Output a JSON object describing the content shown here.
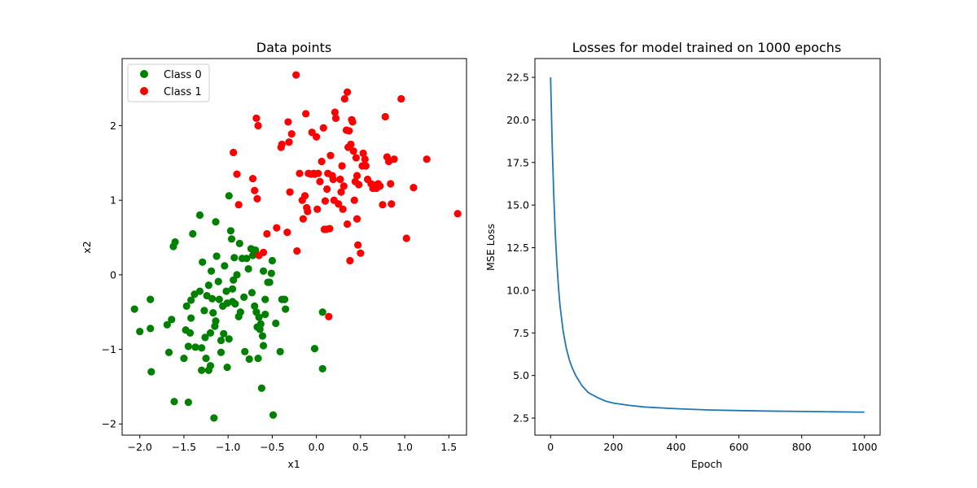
{
  "chart_data": [
    {
      "type": "scatter",
      "title": "Data points",
      "xlabel": "x1",
      "ylabel": "x2",
      "xlim": [
        -2.2,
        1.7
      ],
      "ylim": [
        -2.15,
        2.9
      ],
      "xticks": [
        -2.0,
        -1.5,
        -1.0,
        -0.5,
        0.0,
        0.5,
        1.0,
        1.5
      ],
      "xtick_labels": [
        "−2.0",
        "−1.5",
        "−1.0",
        "−0.5",
        "0.0",
        "0.5",
        "1.0",
        "1.5"
      ],
      "yticks": [
        -2,
        -1,
        0,
        1,
        2
      ],
      "ytick_labels": [
        "−2",
        "−1",
        "0",
        "1",
        "2"
      ],
      "legend": "top-left",
      "grid": false,
      "series": [
        {
          "name": "Class 0",
          "color": "#008000",
          "points": [
            [
              -2.06,
              -0.46
            ],
            [
              -2.0,
              -0.76
            ],
            [
              -1.88,
              -0.72
            ],
            [
              -1.88,
              -0.33
            ],
            [
              -1.87,
              -1.3
            ],
            [
              -1.69,
              -0.67
            ],
            [
              -1.67,
              -1.04
            ],
            [
              -1.64,
              -0.6
            ],
            [
              -1.62,
              0.38
            ],
            [
              -1.6,
              0.44
            ],
            [
              -1.61,
              -1.7
            ],
            [
              -1.5,
              -1.12
            ],
            [
              -1.48,
              -0.74
            ],
            [
              -1.47,
              -0.42
            ],
            [
              -1.45,
              -0.96
            ],
            [
              -1.45,
              -1.71
            ],
            [
              -1.43,
              -0.78
            ],
            [
              -1.42,
              -0.58
            ],
            [
              -1.42,
              -0.34
            ],
            [
              -1.4,
              0.55
            ],
            [
              -1.38,
              -0.26
            ],
            [
              -1.37,
              -0.97
            ],
            [
              -1.32,
              0.8
            ],
            [
              -1.32,
              -0.22
            ],
            [
              -1.3,
              -1.28
            ],
            [
              -1.3,
              -0.98
            ],
            [
              -1.29,
              0.17
            ],
            [
              -1.27,
              -0.48
            ],
            [
              -1.26,
              -0.84
            ],
            [
              -1.25,
              -1.12
            ],
            [
              -1.24,
              -0.28
            ],
            [
              -1.22,
              -1.28
            ],
            [
              -1.22,
              -0.14
            ],
            [
              -1.2,
              -1.22
            ],
            [
              -1.2,
              -0.78
            ],
            [
              -1.19,
              0.05
            ],
            [
              -1.18,
              -0.32
            ],
            [
              -1.17,
              -0.51
            ],
            [
              -1.16,
              -1.92
            ],
            [
              -1.15,
              -0.69
            ],
            [
              -1.14,
              0.71
            ],
            [
              -1.14,
              -0.62
            ],
            [
              -1.13,
              0.25
            ],
            [
              -1.11,
              -0.09
            ],
            [
              -1.1,
              -0.33
            ],
            [
              -1.08,
              -0.88
            ],
            [
              -1.08,
              -1.04
            ],
            [
              -1.06,
              -0.42
            ],
            [
              -1.05,
              -0.79
            ],
            [
              -1.04,
              0.12
            ],
            [
              -1.02,
              -0.22
            ],
            [
              -1.01,
              -0.38
            ],
            [
              -1.01,
              -1.24
            ],
            [
              -0.99,
              1.06
            ],
            [
              -0.99,
              -0.86
            ],
            [
              -0.97,
              0.59
            ],
            [
              -0.96,
              0.48
            ],
            [
              -0.95,
              -0.36
            ],
            [
              -0.95,
              -0.19
            ],
            [
              -0.94,
              -0.07
            ],
            [
              -0.93,
              0.23
            ],
            [
              -0.92,
              -0.39
            ],
            [
              -0.9,
              0.0
            ],
            [
              -0.88,
              -0.56
            ],
            [
              -0.87,
              0.42
            ],
            [
              -0.86,
              -0.5
            ],
            [
              -0.84,
              0.22
            ],
            [
              -0.82,
              -0.3
            ],
            [
              -0.81,
              -1.03
            ],
            [
              -0.79,
              0.22
            ],
            [
              -0.77,
              0.08
            ],
            [
              -0.76,
              -1.13
            ],
            [
              -0.74,
              0.35
            ],
            [
              -0.73,
              -0.24
            ],
            [
              -0.72,
              0.26
            ],
            [
              -0.7,
              -0.42
            ],
            [
              -0.69,
              0.33
            ],
            [
              -0.68,
              -0.5
            ],
            [
              -0.67,
              -0.7
            ],
            [
              -0.66,
              -1.12
            ],
            [
              -0.65,
              -0.57
            ],
            [
              -0.64,
              -0.73
            ],
            [
              -0.63,
              -0.66
            ],
            [
              -0.62,
              -1.52
            ],
            [
              -0.61,
              -0.82
            ],
            [
              -0.6,
              0.05
            ],
            [
              -0.6,
              -0.95
            ],
            [
              -0.58,
              -0.53
            ],
            [
              -0.58,
              -0.33
            ],
            [
              -0.55,
              -0.1
            ],
            [
              -0.53,
              -0.1
            ],
            [
              -0.51,
              0.02
            ],
            [
              -0.5,
              0.19
            ],
            [
              -0.49,
              -1.88
            ],
            [
              -0.46,
              -0.65
            ],
            [
              -0.41,
              -1.03
            ],
            [
              -0.39,
              -0.33
            ],
            [
              -0.36,
              -0.33
            ],
            [
              -0.35,
              -0.46
            ],
            [
              -0.02,
              -0.99
            ],
            [
              0.07,
              -0.5
            ],
            [
              0.07,
              -1.26
            ]
          ]
        },
        {
          "name": "Class 1",
          "color": "#ff0000",
          "points": [
            [
              -0.94,
              1.64
            ],
            [
              -0.9,
              1.35
            ],
            [
              -0.88,
              0.94
            ],
            [
              -0.72,
              1.29
            ],
            [
              -0.7,
              1.13
            ],
            [
              -0.68,
              2.1
            ],
            [
              -0.67,
              1.02
            ],
            [
              -0.66,
              2.0
            ],
            [
              -0.65,
              0.26
            ],
            [
              -0.6,
              0.3
            ],
            [
              -0.56,
              0.55
            ],
            [
              -0.45,
              0.63
            ],
            [
              -0.4,
              1.71
            ],
            [
              -0.39,
              1.75
            ],
            [
              -0.33,
              0.57
            ],
            [
              -0.32,
              2.05
            ],
            [
              -0.31,
              1.78
            ],
            [
              -0.3,
              1.11
            ],
            [
              -0.28,
              1.89
            ],
            [
              -0.23,
              2.68
            ],
            [
              -0.22,
              0.32
            ],
            [
              -0.19,
              1.36
            ],
            [
              -0.16,
              1.0
            ],
            [
              -0.15,
              0.75
            ],
            [
              -0.13,
              1.06
            ],
            [
              -0.12,
              2.16
            ],
            [
              -0.11,
              0.9
            ],
            [
              -0.1,
              0.85
            ],
            [
              -0.09,
              1.36
            ],
            [
              -0.06,
              1.35
            ],
            [
              -0.05,
              1.91
            ],
            [
              -0.03,
              1.36
            ],
            [
              -0.02,
              1.35
            ],
            [
              0.0,
              1.85
            ],
            [
              0.01,
              0.88
            ],
            [
              0.02,
              1.36
            ],
            [
              0.04,
              1.25
            ],
            [
              0.06,
              1.52
            ],
            [
              0.08,
              1.97
            ],
            [
              0.09,
              0.61
            ],
            [
              0.1,
              0.99
            ],
            [
              0.11,
              0.61
            ],
            [
              0.12,
              1.15
            ],
            [
              0.13,
              1.36
            ],
            [
              0.14,
              -0.56
            ],
            [
              0.15,
              0.62
            ],
            [
              0.16,
              1.6
            ],
            [
              0.18,
              1.33
            ],
            [
              0.19,
              1.28
            ],
            [
              0.2,
              1.0
            ],
            [
              0.21,
              2.18
            ],
            [
              0.22,
              2.1
            ],
            [
              0.25,
              0.95
            ],
            [
              0.27,
              1.28
            ],
            [
              0.28,
              1.11
            ],
            [
              0.29,
              1.46
            ],
            [
              0.3,
              0.88
            ],
            [
              0.31,
              1.19
            ],
            [
              0.32,
              2.36
            ],
            [
              0.34,
              1.94
            ],
            [
              0.35,
              2.45
            ],
            [
              0.35,
              0.68
            ],
            [
              0.36,
              1.71
            ],
            [
              0.37,
              1.93
            ],
            [
              0.38,
              0.19
            ],
            [
              0.39,
              1.75
            ],
            [
              0.4,
              2.08
            ],
            [
              0.41,
              2.05
            ],
            [
              0.42,
              1.66
            ],
            [
              0.43,
              1.0
            ],
            [
              0.44,
              1.25
            ],
            [
              0.45,
              1.57
            ],
            [
              0.46,
              1.33
            ],
            [
              0.46,
              0.75
            ],
            [
              0.47,
              0.4
            ],
            [
              0.48,
              1.21
            ],
            [
              0.5,
              0.29
            ],
            [
              0.52,
              1.46
            ],
            [
              0.53,
              1.63
            ],
            [
              0.55,
              1.55
            ],
            [
              0.56,
              1.46
            ],
            [
              0.58,
              1.28
            ],
            [
              0.62,
              1.22
            ],
            [
              0.64,
              1.16
            ],
            [
              0.66,
              1.2
            ],
            [
              0.68,
              1.16
            ],
            [
              0.7,
              1.22
            ],
            [
              0.72,
              1.19
            ],
            [
              0.75,
              0.94
            ],
            [
              0.78,
              2.12
            ],
            [
              0.8,
              1.58
            ],
            [
              0.82,
              1.52
            ],
            [
              0.84,
              1.22
            ],
            [
              0.85,
              0.95
            ],
            [
              0.88,
              1.55
            ],
            [
              0.96,
              2.36
            ],
            [
              1.02,
              0.49
            ],
            [
              1.1,
              1.17
            ],
            [
              1.25,
              1.55
            ],
            [
              1.6,
              0.82
            ]
          ]
        }
      ]
    },
    {
      "type": "line",
      "title": "Losses for model trained on 1000 epochs",
      "xlabel": "Epoch",
      "ylabel": "MSE Loss",
      "xlim": [
        -50,
        1050
      ],
      "ylim": [
        1.5,
        23.6
      ],
      "xticks": [
        0,
        200,
        400,
        600,
        800,
        1000
      ],
      "xtick_labels": [
        "0",
        "200",
        "400",
        "600",
        "800",
        "1000"
      ],
      "yticks": [
        2.5,
        5.0,
        7.5,
        10.0,
        12.5,
        15.0,
        17.5,
        20.0,
        22.5
      ],
      "ytick_labels": [
        "2.5",
        "5.0",
        "7.5",
        "10.0",
        "12.5",
        "15.0",
        "17.5",
        "20.0",
        "22.5"
      ],
      "grid": false,
      "series": [
        {
          "name": "",
          "color": "#1f77b4",
          "x": [
            0,
            5,
            10,
            15,
            20,
            25,
            30,
            40,
            50,
            60,
            70,
            80,
            100,
            120,
            150,
            175,
            200,
            250,
            300,
            400,
            500,
            600,
            700,
            800,
            900,
            1000
          ],
          "y": [
            22.5,
            18.6,
            15.6,
            13.3,
            11.6,
            10.2,
            9.1,
            7.6,
            6.6,
            5.9,
            5.4,
            5.0,
            4.4,
            4.0,
            3.7,
            3.5,
            3.38,
            3.25,
            3.15,
            3.05,
            2.98,
            2.94,
            2.91,
            2.89,
            2.87,
            2.85
          ]
        }
      ]
    }
  ]
}
